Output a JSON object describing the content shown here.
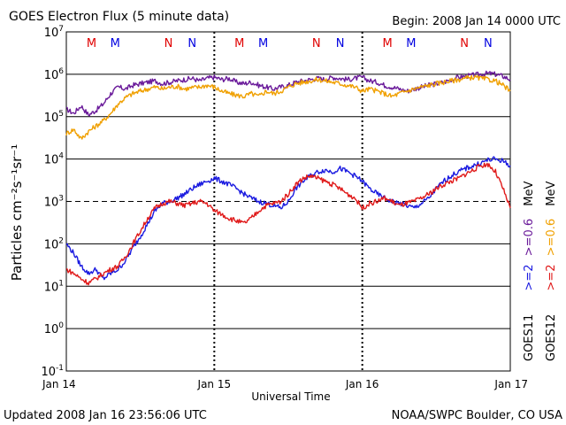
{
  "chart_data": {
    "type": "line",
    "title": "GOES Electron Flux (5 minute data)",
    "begin_label": "Begin: 2008 Jan 14 0000 UTC",
    "xlabel": "Universal Time",
    "ylabel": "Particles cm⁻²s⁻¹sr⁻¹",
    "x_ticks": [
      "Jan 14",
      "Jan 15",
      "Jan 16",
      "Jan 17"
    ],
    "x_range_days": [
      0,
      3
    ],
    "y_scale": "log",
    "ylim": [
      0.1,
      10000000
    ],
    "y_ticks": [
      {
        "base": "10",
        "exp": "7"
      },
      {
        "base": "10",
        "exp": "6"
      },
      {
        "base": "10",
        "exp": "5"
      },
      {
        "base": "10",
        "exp": "4"
      },
      {
        "base": "10",
        "exp": "3"
      },
      {
        "base": "10",
        "exp": "2"
      },
      {
        "base": "10",
        "exp": "1"
      },
      {
        "base": "10",
        "exp": "0"
      },
      {
        "base": "10",
        "exp": "-1"
      }
    ],
    "dashed_reference_y": 1000,
    "markers": [
      {
        "label": "M",
        "x": 0.17,
        "color": "#e00000"
      },
      {
        "label": "M",
        "x": 0.33,
        "color": "#0000e0"
      },
      {
        "label": "N",
        "x": 0.69,
        "color": "#e00000"
      },
      {
        "label": "N",
        "x": 0.85,
        "color": "#0000e0"
      },
      {
        "label": "M",
        "x": 1.17,
        "color": "#e00000"
      },
      {
        "label": "M",
        "x": 1.33,
        "color": "#0000e0"
      },
      {
        "label": "N",
        "x": 1.69,
        "color": "#e00000"
      },
      {
        "label": "N",
        "x": 1.85,
        "color": "#0000e0"
      },
      {
        "label": "M",
        "x": 2.17,
        "color": "#e00000"
      },
      {
        "label": "M",
        "x": 2.33,
        "color": "#0000e0"
      },
      {
        "label": "N",
        "x": 2.69,
        "color": "#e00000"
      },
      {
        "label": "N",
        "x": 2.85,
        "color": "#0000e0"
      }
    ],
    "legend": {
      "goes11": {
        "sat": "GOES11",
        "e2": ">=2",
        "e06": ">=0.6",
        "unit": "MeV"
      },
      "goes12": {
        "sat": "GOES12",
        "e2": ">=2",
        "e06": ">=0.6",
        "unit": "MeV"
      }
    },
    "series": [
      {
        "name": "GOES11 >=0.6 MeV",
        "color": "#6a1a9a",
        "points": [
          [
            0,
            150000
          ],
          [
            0.05,
            120000
          ],
          [
            0.1,
            180000
          ],
          [
            0.15,
            110000
          ],
          [
            0.2,
            140000
          ],
          [
            0.25,
            200000
          ],
          [
            0.3,
            350000
          ],
          [
            0.35,
            500000
          ],
          [
            0.4,
            450000
          ],
          [
            0.45,
            550000
          ],
          [
            0.5,
            600000
          ],
          [
            0.55,
            650000
          ],
          [
            0.6,
            700000
          ],
          [
            0.65,
            600000
          ],
          [
            0.7,
            650000
          ],
          [
            0.75,
            700000
          ],
          [
            0.8,
            750000
          ],
          [
            0.85,
            800000
          ],
          [
            0.9,
            700000
          ],
          [
            0.95,
            800000
          ],
          [
            1.0,
            850000
          ],
          [
            1.05,
            750000
          ],
          [
            1.1,
            800000
          ],
          [
            1.15,
            650000
          ],
          [
            1.2,
            600000
          ],
          [
            1.25,
            650000
          ],
          [
            1.3,
            550000
          ],
          [
            1.35,
            500000
          ],
          [
            1.4,
            450000
          ],
          [
            1.45,
            500000
          ],
          [
            1.5,
            550000
          ],
          [
            1.55,
            650000
          ],
          [
            1.6,
            700000
          ],
          [
            1.65,
            750000
          ],
          [
            1.7,
            800000
          ],
          [
            1.75,
            750000
          ],
          [
            1.8,
            850000
          ],
          [
            1.85,
            800000
          ],
          [
            1.9,
            750000
          ],
          [
            1.95,
            800000
          ],
          [
            2.0,
            850000
          ],
          [
            2.05,
            700000
          ],
          [
            2.1,
            650000
          ],
          [
            2.15,
            550000
          ],
          [
            2.2,
            500000
          ],
          [
            2.25,
            450000
          ],
          [
            2.3,
            400000
          ],
          [
            2.35,
            450000
          ],
          [
            2.4,
            500000
          ],
          [
            2.45,
            550000
          ],
          [
            2.5,
            600000
          ],
          [
            2.55,
            650000
          ],
          [
            2.6,
            750000
          ],
          [
            2.65,
            850000
          ],
          [
            2.7,
            900000
          ],
          [
            2.75,
            950000
          ],
          [
            2.8,
            1000000
          ],
          [
            2.85,
            1050000
          ],
          [
            2.9,
            1000000
          ],
          [
            2.95,
            900000
          ],
          [
            3.0,
            750000
          ]
        ]
      },
      {
        "name": "GOES12 >=0.6 MeV",
        "color": "#f0a000",
        "points": [
          [
            0,
            40000
          ],
          [
            0.05,
            50000
          ],
          [
            0.1,
            30000
          ],
          [
            0.15,
            45000
          ],
          [
            0.2,
            60000
          ],
          [
            0.25,
            80000
          ],
          [
            0.3,
            120000
          ],
          [
            0.35,
            200000
          ],
          [
            0.4,
            280000
          ],
          [
            0.45,
            350000
          ],
          [
            0.5,
            400000
          ],
          [
            0.55,
            450000
          ],
          [
            0.6,
            500000
          ],
          [
            0.65,
            450000
          ],
          [
            0.7,
            500000
          ],
          [
            0.75,
            520000
          ],
          [
            0.8,
            450000
          ],
          [
            0.85,
            480000
          ],
          [
            0.9,
            500000
          ],
          [
            0.95,
            550000
          ],
          [
            1.0,
            500000
          ],
          [
            1.05,
            400000
          ],
          [
            1.1,
            350000
          ],
          [
            1.15,
            320000
          ],
          [
            1.2,
            300000
          ],
          [
            1.25,
            350000
          ],
          [
            1.3,
            300000
          ],
          [
            1.35,
            400000
          ],
          [
            1.4,
            350000
          ],
          [
            1.45,
            400000
          ],
          [
            1.5,
            500000
          ],
          [
            1.55,
            600000
          ],
          [
            1.6,
            650000
          ],
          [
            1.65,
            700000
          ],
          [
            1.7,
            750000
          ],
          [
            1.75,
            700000
          ],
          [
            1.8,
            650000
          ],
          [
            1.85,
            600000
          ],
          [
            1.9,
            550000
          ],
          [
            1.95,
            500000
          ],
          [
            2.0,
            400000
          ],
          [
            2.05,
            450000
          ],
          [
            2.1,
            400000
          ],
          [
            2.15,
            350000
          ],
          [
            2.2,
            300000
          ],
          [
            2.25,
            350000
          ],
          [
            2.3,
            400000
          ],
          [
            2.35,
            450000
          ],
          [
            2.4,
            500000
          ],
          [
            2.45,
            550000
          ],
          [
            2.5,
            600000
          ],
          [
            2.55,
            650000
          ],
          [
            2.6,
            700000
          ],
          [
            2.65,
            750000
          ],
          [
            2.7,
            800000
          ],
          [
            2.75,
            850000
          ],
          [
            2.8,
            800000
          ],
          [
            2.85,
            750000
          ],
          [
            2.9,
            700000
          ],
          [
            2.95,
            550000
          ],
          [
            3.0,
            400000
          ]
        ]
      },
      {
        "name": "GOES11 >=2 MeV",
        "color": "#1a1ae0",
        "points": [
          [
            0,
            100
          ],
          [
            0.05,
            60
          ],
          [
            0.1,
            30
          ],
          [
            0.15,
            20
          ],
          [
            0.2,
            25
          ],
          [
            0.25,
            15
          ],
          [
            0.3,
            20
          ],
          [
            0.35,
            25
          ],
          [
            0.4,
            40
          ],
          [
            0.45,
            80
          ],
          [
            0.5,
            150
          ],
          [
            0.55,
            300
          ],
          [
            0.6,
            600
          ],
          [
            0.65,
            900
          ],
          [
            0.7,
            1000
          ],
          [
            0.75,
            1200
          ],
          [
            0.8,
            1500
          ],
          [
            0.85,
            2000
          ],
          [
            0.9,
            2500
          ],
          [
            0.95,
            3000
          ],
          [
            1.0,
            3500
          ],
          [
            1.05,
            3000
          ],
          [
            1.1,
            2500
          ],
          [
            1.15,
            2000
          ],
          [
            1.2,
            1500
          ],
          [
            1.25,
            1200
          ],
          [
            1.3,
            1000
          ],
          [
            1.35,
            900
          ],
          [
            1.4,
            800
          ],
          [
            1.45,
            700
          ],
          [
            1.5,
            1000
          ],
          [
            1.55,
            2000
          ],
          [
            1.6,
            3000
          ],
          [
            1.65,
            4000
          ],
          [
            1.7,
            5000
          ],
          [
            1.75,
            5500
          ],
          [
            1.8,
            5000
          ],
          [
            1.85,
            6000
          ],
          [
            1.9,
            5000
          ],
          [
            1.95,
            4000
          ],
          [
            2.0,
            3000
          ],
          [
            2.05,
            2000
          ],
          [
            2.1,
            1500
          ],
          [
            2.15,
            1200
          ],
          [
            2.2,
            1000
          ],
          [
            2.25,
            900
          ],
          [
            2.3,
            800
          ],
          [
            2.35,
            700
          ],
          [
            2.4,
            900
          ],
          [
            2.45,
            1200
          ],
          [
            2.5,
            2000
          ],
          [
            2.55,
            3000
          ],
          [
            2.6,
            4000
          ],
          [
            2.65,
            5000
          ],
          [
            2.7,
            6000
          ],
          [
            2.75,
            7000
          ],
          [
            2.8,
            8000
          ],
          [
            2.85,
            9500
          ],
          [
            2.9,
            10000
          ],
          [
            2.95,
            9000
          ],
          [
            3.0,
            7000
          ]
        ]
      },
      {
        "name": "GOES12 >=2 MeV",
        "color": "#e01a1a",
        "points": [
          [
            0,
            25
          ],
          [
            0.05,
            20
          ],
          [
            0.1,
            15
          ],
          [
            0.15,
            12
          ],
          [
            0.2,
            15
          ],
          [
            0.25,
            20
          ],
          [
            0.3,
            25
          ],
          [
            0.35,
            30
          ],
          [
            0.4,
            50
          ],
          [
            0.45,
            100
          ],
          [
            0.5,
            200
          ],
          [
            0.55,
            400
          ],
          [
            0.6,
            700
          ],
          [
            0.65,
            900
          ],
          [
            0.7,
            1000
          ],
          [
            0.75,
            900
          ],
          [
            0.8,
            800
          ],
          [
            0.85,
            900
          ],
          [
            0.9,
            1000
          ],
          [
            0.95,
            900
          ],
          [
            1.0,
            600
          ],
          [
            1.05,
            500
          ],
          [
            1.1,
            400
          ],
          [
            1.15,
            350
          ],
          [
            1.2,
            300
          ],
          [
            1.25,
            400
          ],
          [
            1.3,
            600
          ],
          [
            1.35,
            800
          ],
          [
            1.4,
            900
          ],
          [
            1.45,
            1000
          ],
          [
            1.5,
            1500
          ],
          [
            1.55,
            2500
          ],
          [
            1.6,
            3500
          ],
          [
            1.65,
            4000
          ],
          [
            1.7,
            3500
          ],
          [
            1.75,
            3000
          ],
          [
            1.8,
            2500
          ],
          [
            1.85,
            2000
          ],
          [
            1.9,
            1500
          ],
          [
            1.95,
            1200
          ],
          [
            2.0,
            700
          ],
          [
            2.05,
            900
          ],
          [
            2.1,
            1000
          ],
          [
            2.15,
            1200
          ],
          [
            2.2,
            1000
          ],
          [
            2.25,
            800
          ],
          [
            2.3,
            900
          ],
          [
            2.35,
            1000
          ],
          [
            2.4,
            1200
          ],
          [
            2.45,
            1500
          ],
          [
            2.5,
            2000
          ],
          [
            2.55,
            2500
          ],
          [
            2.6,
            3000
          ],
          [
            2.65,
            3500
          ],
          [
            2.7,
            4500
          ],
          [
            2.75,
            5500
          ],
          [
            2.8,
            7000
          ],
          [
            2.85,
            7500
          ],
          [
            2.9,
            5000
          ],
          [
            2.95,
            2000
          ],
          [
            3.0,
            700
          ]
        ]
      }
    ]
  },
  "footer": {
    "updated": "Updated 2008 Jan 16 23:56:06 UTC",
    "source": "NOAA/SWPC Boulder, CO USA"
  }
}
